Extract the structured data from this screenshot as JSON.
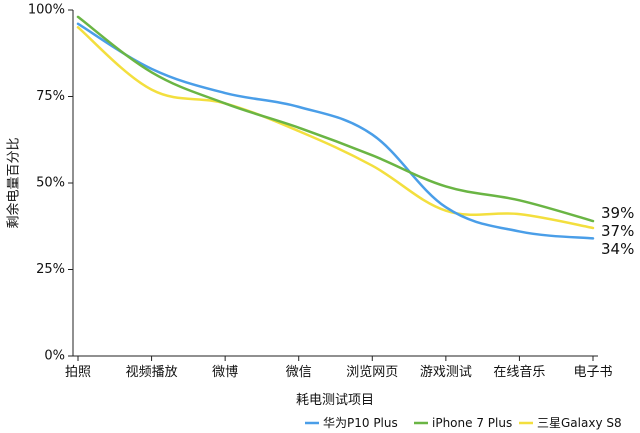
{
  "chart_data": {
    "type": "line",
    "xlabel": "耗电测试项目",
    "ylabel": "剩余电量百分比",
    "categories": [
      "拍照",
      "视频播放",
      "微博",
      "微信",
      "浏览网页",
      "游戏测试",
      "在线音乐",
      "电子书"
    ],
    "ylim": [
      0,
      100
    ],
    "yticks": [
      {
        "value": 0,
        "label": "0%"
      },
      {
        "value": 25,
        "label": "25%"
      },
      {
        "value": 50,
        "label": "50%"
      },
      {
        "value": 75,
        "label": "75%"
      },
      {
        "value": 100,
        "label": "100%"
      }
    ],
    "legend_position": "bottom-right",
    "series": [
      {
        "name": "华为P10 Plus",
        "color": "#4a9ee8",
        "values": [
          96,
          83,
          76,
          72,
          64,
          43,
          36,
          34
        ],
        "end_label": "34%"
      },
      {
        "name": "iPhone 7 Plus",
        "color": "#6ab544",
        "values": [
          98,
          82,
          73,
          66,
          58,
          49,
          45,
          39
        ],
        "end_label": "39%"
      },
      {
        "name": "三星Galaxy S8",
        "color": "#f3df3e",
        "values": [
          95,
          77,
          73,
          65,
          55,
          42,
          41,
          37
        ],
        "end_label": "37%"
      }
    ]
  }
}
